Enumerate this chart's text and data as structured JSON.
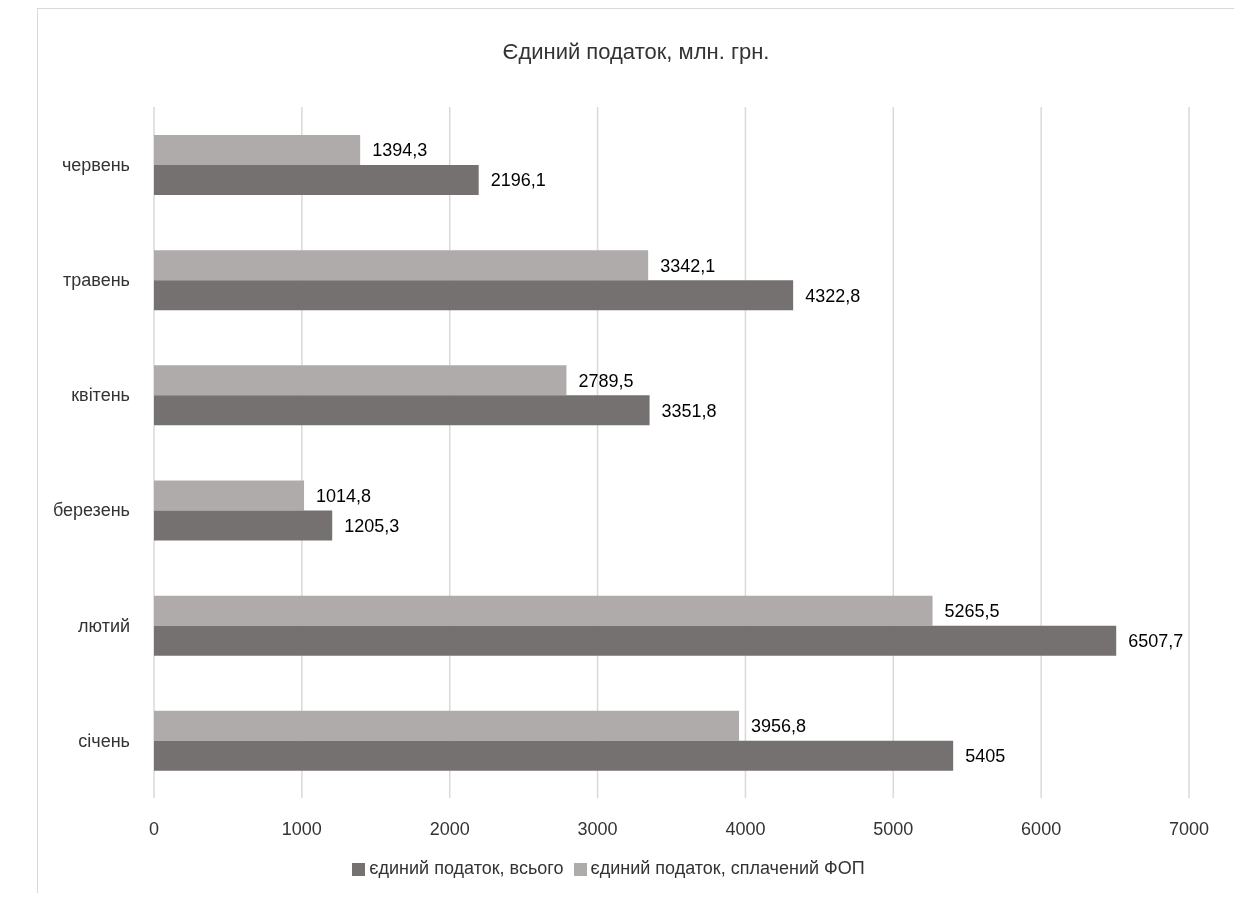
{
  "chart_data": {
    "type": "bar",
    "orientation": "horizontal",
    "title": "Єдиний податок, млн. грн.",
    "categories": [
      "червень",
      "травень",
      "квітень",
      "березень",
      "лютий",
      "січень"
    ],
    "series": [
      {
        "name": "єдиний податок, сплачений ФОП",
        "color": "#afabab",
        "values": [
          1394.3,
          3342.1,
          2789.5,
          1014.8,
          5265.5,
          3956.8
        ],
        "value_labels": [
          "1394,3",
          "3342,1",
          "2789,5",
          "1014,8",
          "5265,5",
          "3956,8"
        ]
      },
      {
        "name": "єдиний податок, всього",
        "color": "#767171",
        "values": [
          2196.1,
          4322.8,
          3351.8,
          1205.3,
          6507.7,
          5405
        ],
        "value_labels": [
          "2196,1",
          "4322,8",
          "3351,8",
          "1205,3",
          "6507,7",
          "5405"
        ]
      }
    ],
    "xlim": [
      0,
      7000
    ],
    "xticks": [
      0,
      1000,
      2000,
      3000,
      4000,
      5000,
      6000,
      7000
    ],
    "grid": "x",
    "legend": "bottom"
  }
}
